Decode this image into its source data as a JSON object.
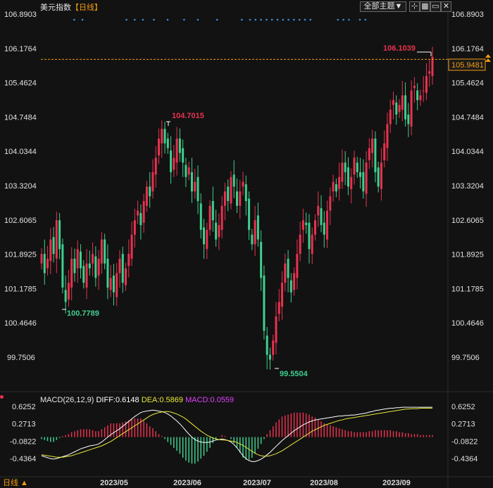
{
  "header": {
    "title": "美元指数",
    "period_bracket": "【日线】",
    "theme_button": "全部主题▼"
  },
  "bottom_bar": {
    "period_label": "日线 ▲"
  },
  "macd": {
    "label": "MACD(26,12,9)",
    "diff": "DIFF:0.6148",
    "dea": "DEA:0.5869",
    "macd": "MACD:0.0559",
    "y_ticks": [
      "0.6252",
      "0.2713",
      "-0.0822",
      "-0.4364"
    ],
    "colors": {
      "diff": "#ffffff",
      "dea": "#e8e83a",
      "macd_label": "#e040fb"
    }
  },
  "colors": {
    "up": "#e8324f",
    "down": "#3ecf8e",
    "last_price_line": "#f39c12",
    "dots": "#3b8fd9"
  },
  "chart_data": {
    "type": "candlestick",
    "title": "美元指数",
    "y_ticks": [
      "106.8903",
      "106.1764",
      "105.4624",
      "104.7484",
      "104.0344",
      "103.3204",
      "102.6065",
      "101.8925",
      "101.1785",
      "100.4646",
      "99.7506"
    ],
    "ylim": [
      99.55,
      106.89
    ],
    "x_ticks": [
      "2023/05",
      "2023/06",
      "2023/07",
      "2023/08",
      "2023/09"
    ],
    "annotations": {
      "high_label": "104.7015",
      "low_left_label": "100.7789",
      "low_label": "99.5504",
      "recent_high_label": "106.1039",
      "last_price": "105.9481"
    },
    "closes": [
      101.9,
      101.5,
      101.8,
      102.2,
      101.9,
      102.6,
      102.0,
      101.2,
      100.9,
      101.3,
      101.8,
      101.5,
      102.0,
      101.6,
      101.3,
      101.7,
      101.6,
      101.9,
      101.4,
      101.8,
      102.2,
      101.7,
      101.2,
      101.4,
      101.1,
      101.5,
      101.8,
      101.3,
      101.6,
      101.9,
      102.3,
      102.6,
      102.8,
      102.5,
      103.0,
      103.3,
      103.1,
      103.6,
      103.9,
      104.3,
      104.5,
      104.2,
      104.1,
      103.6,
      103.9,
      104.3,
      104.0,
      103.8,
      103.5,
      103.7,
      103.2,
      103.4,
      103.0,
      102.4,
      102.1,
      102.4,
      102.9,
      102.6,
      102.2,
      102.5,
      102.9,
      103.2,
      103.0,
      103.5,
      103.3,
      102.9,
      103.2,
      103.4,
      103.0,
      102.4,
      102.1,
      102.6,
      102.2,
      101.4,
      100.3,
      99.8,
      99.7,
      100.1,
      100.6,
      100.9,
      101.3,
      101.7,
      101.4,
      101.1,
      101.5,
      101.9,
      102.3,
      102.6,
      102.5,
      102.0,
      102.3,
      102.6,
      102.9,
      102.5,
      102.3,
      102.8,
      103.1,
      103.4,
      103.2,
      103.5,
      103.8,
      103.6,
      103.3,
      103.5,
      103.9,
      103.6,
      103.5,
      103.2,
      103.8,
      104.1,
      104.3,
      103.6,
      103.3,
      103.8,
      104.2,
      104.6,
      104.9,
      105.1,
      104.8,
      105.0,
      105.2,
      104.7,
      104.6,
      105.3,
      105.4,
      105.1,
      105.2,
      105.3,
      105.6,
      105.7,
      106.0
    ],
    "macd_diff": [
      -0.38,
      -0.4,
      -0.42,
      -0.44,
      -0.45,
      -0.44,
      -0.42,
      -0.4,
      -0.38,
      -0.36,
      -0.33,
      -0.3,
      -0.27,
      -0.24,
      -0.22,
      -0.2,
      -0.18,
      -0.17,
      -0.16,
      -0.14,
      -0.1,
      -0.05,
      0.0,
      0.05,
      0.09,
      0.13,
      0.17,
      0.22,
      0.27,
      0.32,
      0.37,
      0.42,
      0.46,
      0.5,
      0.52,
      0.53,
      0.54,
      0.55,
      0.54,
      0.53,
      0.52,
      0.5,
      0.47,
      0.43,
      0.38,
      0.33,
      0.27,
      0.2,
      0.13,
      0.06,
      0.0,
      -0.05,
      -0.08,
      -0.1,
      -0.11,
      -0.11,
      -0.1,
      -0.08,
      -0.06,
      -0.05,
      -0.04,
      -0.05,
      -0.07,
      -0.1,
      -0.15,
      -0.22,
      -0.3,
      -0.38,
      -0.44,
      -0.48,
      -0.5,
      -0.5,
      -0.48,
      -0.45,
      -0.41,
      -0.36,
      -0.31,
      -0.25,
      -0.19,
      -0.13,
      -0.07,
      -0.02,
      0.03,
      0.08,
      0.13,
      0.17,
      0.21,
      0.25,
      0.28,
      0.31,
      0.33,
      0.35,
      0.36,
      0.37,
      0.38,
      0.39,
      0.4,
      0.41,
      0.42,
      0.43,
      0.43,
      0.44,
      0.44,
      0.45,
      0.45,
      0.46,
      0.47,
      0.48,
      0.49,
      0.51,
      0.52,
      0.54,
      0.55,
      0.56,
      0.57,
      0.58,
      0.59,
      0.59,
      0.6,
      0.6,
      0.61,
      0.61,
      0.61,
      0.61,
      0.61,
      0.61,
      0.61,
      0.61,
      0.61,
      0.61,
      0.61
    ],
    "macd_dea": [
      -0.36,
      -0.37,
      -0.38,
      -0.39,
      -0.4,
      -0.41,
      -0.41,
      -0.41,
      -0.4,
      -0.39,
      -0.38,
      -0.36,
      -0.34,
      -0.32,
      -0.3,
      -0.28,
      -0.26,
      -0.24,
      -0.22,
      -0.2,
      -0.18,
      -0.15,
      -0.12,
      -0.09,
      -0.05,
      -0.01,
      0.03,
      0.07,
      0.11,
      0.15,
      0.19,
      0.23,
      0.27,
      0.31,
      0.35,
      0.39,
      0.43,
      0.46,
      0.48,
      0.5,
      0.51,
      0.52,
      0.52,
      0.51,
      0.49,
      0.47,
      0.44,
      0.41,
      0.37,
      0.32,
      0.27,
      0.22,
      0.17,
      0.12,
      0.08,
      0.04,
      0.01,
      -0.02,
      -0.04,
      -0.05,
      -0.06,
      -0.06,
      -0.07,
      -0.08,
      -0.09,
      -0.11,
      -0.14,
      -0.17,
      -0.21,
      -0.25,
      -0.29,
      -0.33,
      -0.36,
      -0.38,
      -0.39,
      -0.39,
      -0.38,
      -0.36,
      -0.34,
      -0.31,
      -0.28,
      -0.24,
      -0.2,
      -0.16,
      -0.12,
      -0.08,
      -0.04,
      0.0,
      0.04,
      0.08,
      0.12,
      0.15,
      0.18,
      0.21,
      0.24,
      0.26,
      0.28,
      0.3,
      0.32,
      0.34,
      0.35,
      0.37,
      0.38,
      0.39,
      0.4,
      0.41,
      0.42,
      0.43,
      0.44,
      0.45,
      0.46,
      0.47,
      0.48,
      0.49,
      0.5,
      0.51,
      0.52,
      0.53,
      0.54,
      0.55,
      0.56,
      0.57,
      0.57,
      0.58,
      0.58,
      0.58,
      0.59,
      0.59,
      0.59,
      0.59,
      0.59
    ],
    "grid": false
  }
}
